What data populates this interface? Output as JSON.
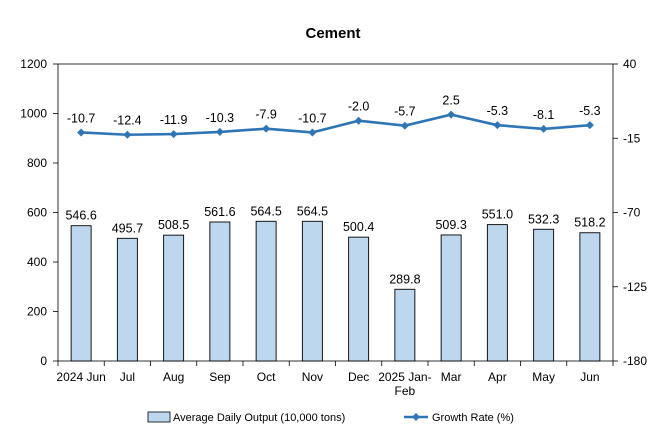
{
  "chart_data": {
    "type": "bar+line",
    "title": "Cement",
    "categories": [
      "2024 Jun",
      "Jul",
      "Aug",
      "Sep",
      "Oct",
      "Nov",
      "Dec",
      "2025 Jan-Feb",
      "Mar",
      "Apr",
      "May",
      "Jun"
    ],
    "series": [
      {
        "name": "Average Daily Output (10,000 tons)",
        "type": "bar",
        "axis": "left",
        "values": [
          546.6,
          495.7,
          508.5,
          561.6,
          564.5,
          564.5,
          500.4,
          289.8,
          509.3,
          551.0,
          532.3,
          518.2
        ],
        "labels": [
          "546.6",
          "495.7",
          "508.5",
          "561.6",
          "564.5",
          "564.5",
          "500.4",
          "289.8",
          "509.3",
          "551.0",
          "532.3",
          "518.2"
        ],
        "color": "#bdd7ee",
        "stroke": "#000000"
      },
      {
        "name": "Growth Rate (%)",
        "type": "line",
        "axis": "right",
        "values": [
          -10.7,
          -12.4,
          -11.9,
          -10.3,
          -7.9,
          -10.7,
          -2.0,
          -5.7,
          2.5,
          -5.3,
          -8.1,
          -5.3
        ],
        "labels": [
          "-10.7",
          "-12.4",
          "-11.9",
          "-10.3",
          "-7.9",
          "-10.7",
          "-2.0",
          "-5.7",
          "2.5",
          "-5.3",
          "-8.1",
          "-5.3"
        ],
        "color": "#2e75b6"
      }
    ],
    "left_axis": {
      "min": 0,
      "max": 1200,
      "ticks": [
        "0",
        "200",
        "400",
        "600",
        "800",
        "1000",
        "1200"
      ]
    },
    "right_axis": {
      "min": -180,
      "max": 40,
      "ticks": [
        "-180",
        "-125",
        "-70",
        "-15",
        "40"
      ]
    },
    "grid": false,
    "legend_position": "bottom"
  }
}
